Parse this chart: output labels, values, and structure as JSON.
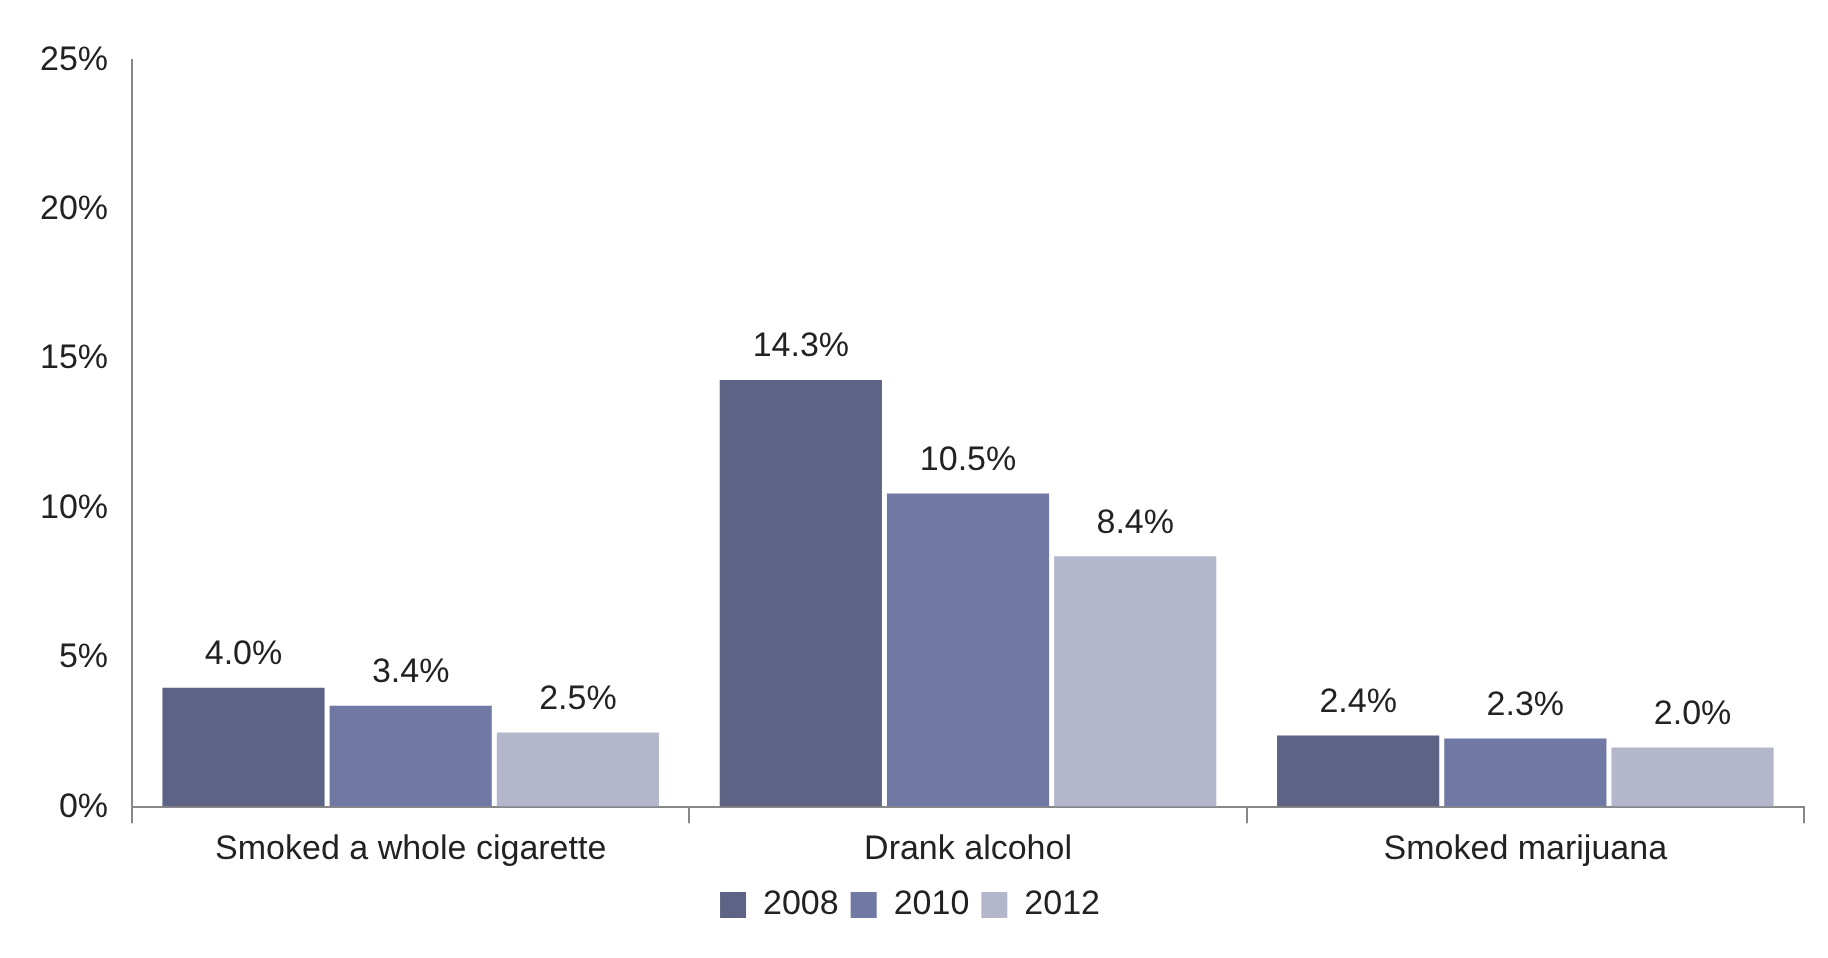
{
  "chart_data": {
    "type": "bar",
    "categories": [
      "Smoked a whole cigarette",
      "Drank alcohol",
      "Smoked marijuana"
    ],
    "series": [
      {
        "name": "2008",
        "color": "#5c6384",
        "values": [
          4.0,
          14.3,
          2.4
        ],
        "value_labels": [
          "4.0%",
          "14.3%",
          "2.4%"
        ]
      },
      {
        "name": "2010",
        "color": "#7079a3",
        "values": [
          3.4,
          10.5,
          2.3
        ],
        "value_labels": [
          "3.4%",
          "10.5%",
          "2.3%"
        ]
      },
      {
        "name": "2012",
        "color": "#b4b7cc",
        "values": [
          2.5,
          8.4,
          2.0
        ],
        "value_labels": [
          "2.5%",
          "8.4%",
          "2.0%"
        ]
      }
    ],
    "ylim": [
      0,
      25
    ],
    "yticks": [
      {
        "value": 0,
        "label": "0%"
      },
      {
        "value": 5,
        "label": "5%"
      },
      {
        "value": 10,
        "label": "10%"
      },
      {
        "value": 15,
        "label": "15%"
      },
      {
        "value": 20,
        "label": "20%"
      },
      {
        "value": 25,
        "label": "25%"
      }
    ],
    "grid": false,
    "legend": "bottom"
  }
}
